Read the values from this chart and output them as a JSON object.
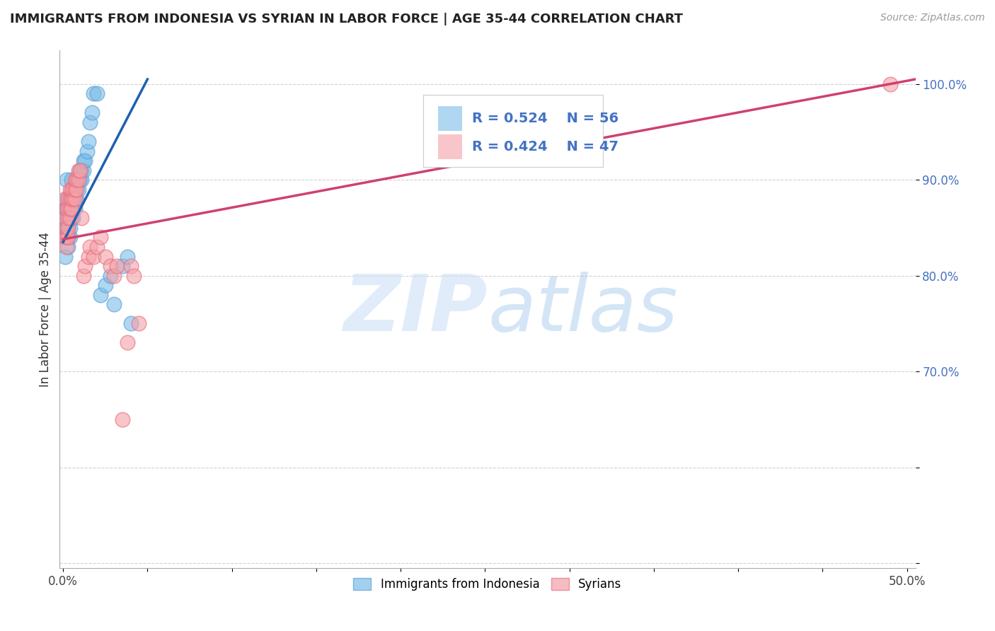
{
  "title": "IMMIGRANTS FROM INDONESIA VS SYRIAN IN LABOR FORCE | AGE 35-44 CORRELATION CHART",
  "source": "Source: ZipAtlas.com",
  "ylabel": "In Labor Force | Age 35-44",
  "xlim": [
    -0.002,
    0.505
  ],
  "ylim": [
    0.495,
    1.035
  ],
  "legend_r_blue": "R = 0.524",
  "legend_n_blue": "N = 56",
  "legend_r_pink": "R = 0.424",
  "legend_n_pink": "N = 47",
  "legend_label_blue": "Immigrants from Indonesia",
  "legend_label_pink": "Syrians",
  "blue_color": "#7bbde8",
  "pink_color": "#f4a0a8",
  "blue_edge": "#5a9fd4",
  "pink_edge": "#e87080",
  "trendline_blue": "#2060b0",
  "trendline_pink": "#d04070",
  "indo_x": [
    0.001,
    0.001,
    0.001,
    0.001,
    0.002,
    0.002,
    0.002,
    0.002,
    0.002,
    0.003,
    0.003,
    0.003,
    0.003,
    0.003,
    0.003,
    0.003,
    0.004,
    0.004,
    0.004,
    0.004,
    0.004,
    0.005,
    0.005,
    0.005,
    0.005,
    0.006,
    0.006,
    0.006,
    0.007,
    0.007,
    0.007,
    0.008,
    0.008,
    0.008,
    0.009,
    0.009,
    0.01,
    0.01,
    0.011,
    0.011,
    0.012,
    0.012,
    0.013,
    0.014,
    0.015,
    0.016,
    0.017,
    0.018,
    0.02,
    0.022,
    0.025,
    0.028,
    0.03,
    0.035,
    0.038,
    0.04
  ],
  "indo_y": [
    0.84,
    0.86,
    0.82,
    0.87,
    0.85,
    0.86,
    0.87,
    0.88,
    0.9,
    0.84,
    0.83,
    0.84,
    0.85,
    0.86,
    0.87,
    0.88,
    0.84,
    0.85,
    0.86,
    0.87,
    0.88,
    0.86,
    0.87,
    0.88,
    0.9,
    0.86,
    0.87,
    0.88,
    0.87,
    0.88,
    0.89,
    0.88,
    0.89,
    0.9,
    0.89,
    0.9,
    0.9,
    0.91,
    0.9,
    0.91,
    0.91,
    0.92,
    0.92,
    0.93,
    0.94,
    0.96,
    0.97,
    0.99,
    0.99,
    0.78,
    0.79,
    0.8,
    0.77,
    0.81,
    0.82,
    0.75
  ],
  "syria_x": [
    0.001,
    0.001,
    0.001,
    0.002,
    0.002,
    0.002,
    0.002,
    0.003,
    0.003,
    0.003,
    0.003,
    0.003,
    0.004,
    0.004,
    0.004,
    0.004,
    0.005,
    0.005,
    0.005,
    0.006,
    0.006,
    0.007,
    0.007,
    0.007,
    0.008,
    0.008,
    0.009,
    0.009,
    0.01,
    0.011,
    0.012,
    0.013,
    0.015,
    0.016,
    0.018,
    0.02,
    0.022,
    0.025,
    0.028,
    0.03,
    0.032,
    0.035,
    0.038,
    0.04,
    0.042,
    0.045,
    0.49
  ],
  "syria_y": [
    0.84,
    0.86,
    0.88,
    0.83,
    0.84,
    0.85,
    0.87,
    0.84,
    0.85,
    0.86,
    0.87,
    0.88,
    0.86,
    0.87,
    0.88,
    0.89,
    0.87,
    0.88,
    0.89,
    0.88,
    0.89,
    0.88,
    0.89,
    0.9,
    0.89,
    0.9,
    0.9,
    0.91,
    0.91,
    0.86,
    0.8,
    0.81,
    0.82,
    0.83,
    0.82,
    0.83,
    0.84,
    0.82,
    0.81,
    0.8,
    0.81,
    0.65,
    0.73,
    0.81,
    0.8,
    0.75,
    1.0
  ],
  "blue_trendline_x": [
    0.0,
    0.05
  ],
  "blue_trendline_y": [
    0.835,
    1.005
  ],
  "pink_trendline_x": [
    0.0,
    0.505
  ],
  "pink_trendline_y": [
    0.838,
    1.005
  ]
}
